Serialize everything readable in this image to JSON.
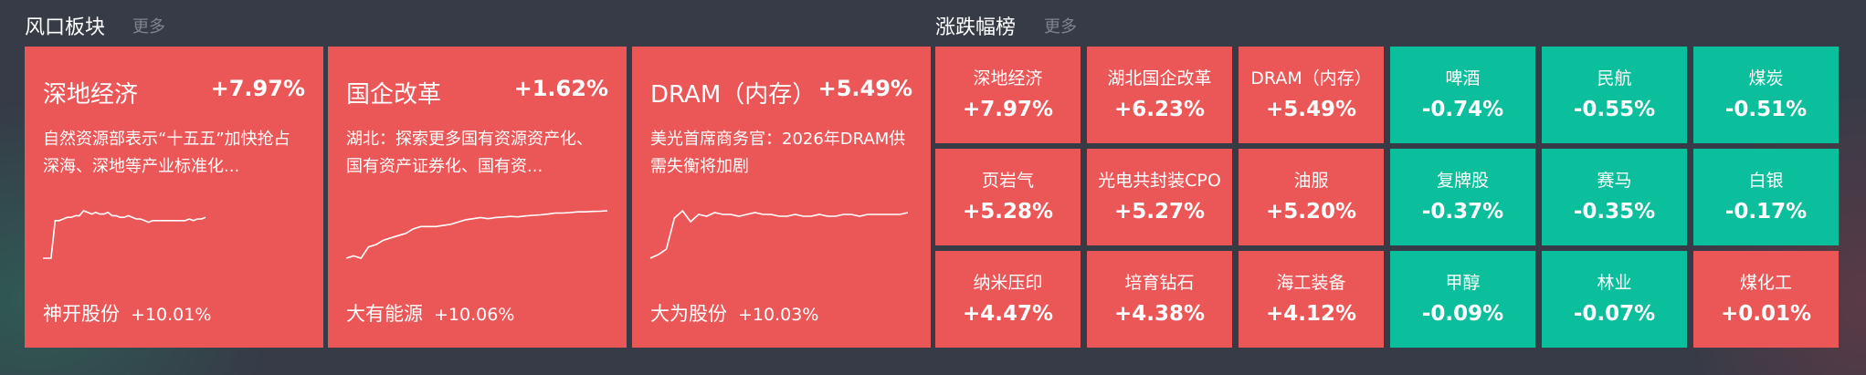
{
  "colors": {
    "up": "#eb5657",
    "down": "#0bbf9c",
    "background": "#363b47"
  },
  "hot_sectors": {
    "title": "风口板块",
    "more": "更多",
    "cards": [
      {
        "name": "深地经济",
        "pct": "+7.97%",
        "desc": "自然资源部表示“十五五”加快抢占深海、深地等产业标准化...",
        "stock": "神开股份",
        "stock_pct": "+10.01%",
        "sparkline": [
          0,
          0,
          0,
          2.3,
          2.3,
          2.4,
          2.5,
          2.5,
          2.6,
          2.6,
          2.9,
          2.8,
          2.7,
          2.8,
          2.7,
          2.7,
          2.8,
          2.6,
          2.6,
          2.5,
          2.5,
          2.6,
          2.5,
          2.4,
          2.4,
          2.3,
          2.2,
          2.3,
          2.3,
          2.3,
          2.3,
          2.3,
          2.3,
          2.3,
          2.3,
          2.3,
          2.4,
          2.3,
          2.4,
          2.4,
          2.5
        ]
      },
      {
        "name": "国企改革",
        "pct": "+1.62%",
        "desc": "湖北：探索更多国有资源资产化、国有资产证券化、国有资...",
        "stock": "大有能源",
        "stock_pct": "+10.06%",
        "sparkline": [
          0,
          0.1,
          0,
          0.5,
          0.6,
          0.8,
          0.9,
          1.0,
          1.1,
          1.3,
          1.4,
          1.4,
          1.4,
          1.45,
          1.5,
          1.6,
          1.7,
          1.75,
          1.8,
          1.75,
          1.8,
          1.82,
          1.85,
          1.83,
          1.87,
          1.9,
          1.92,
          1.95,
          2.0,
          2.0,
          2.02,
          2.05,
          2.05,
          2.07,
          2.08,
          2.1
        ]
      },
      {
        "name": "DRAM（内存）",
        "pct": "+5.49%",
        "desc": "美光首席商务官：2026年DRAM供需失衡将加剧",
        "stock": "大为股份",
        "stock_pct": "+10.03%",
        "sparkline": [
          0,
          0.2,
          0.5,
          2.2,
          2.6,
          2.0,
          2.4,
          2.3,
          2.5,
          2.4,
          2.4,
          2.3,
          2.4,
          2.5,
          2.4,
          2.4,
          2.3,
          2.3,
          2.4,
          2.3,
          2.3,
          2.4,
          2.3,
          2.3,
          2.4,
          2.4,
          2.3,
          2.4,
          2.4,
          2.4,
          2.4,
          2.4,
          2.5
        ]
      }
    ]
  },
  "ranking": {
    "title": "涨跌幅榜",
    "more": "更多",
    "cells": [
      {
        "name": "深地经济",
        "pct": "+7.97%",
        "dir": "up"
      },
      {
        "name": "湖北国企改革",
        "pct": "+6.23%",
        "dir": "up"
      },
      {
        "name": "DRAM（内存）",
        "pct": "+5.49%",
        "dir": "up"
      },
      {
        "name": "啤酒",
        "pct": "-0.74%",
        "dir": "down"
      },
      {
        "name": "民航",
        "pct": "-0.55%",
        "dir": "down"
      },
      {
        "name": "煤炭",
        "pct": "-0.51%",
        "dir": "down"
      },
      {
        "name": "页岩气",
        "pct": "+5.28%",
        "dir": "up"
      },
      {
        "name": "光电共封装CPO",
        "pct": "+5.27%",
        "dir": "up"
      },
      {
        "name": "油服",
        "pct": "+5.20%",
        "dir": "up"
      },
      {
        "name": "复牌股",
        "pct": "-0.37%",
        "dir": "down"
      },
      {
        "name": "赛马",
        "pct": "-0.35%",
        "dir": "down"
      },
      {
        "name": "白银",
        "pct": "-0.17%",
        "dir": "down"
      },
      {
        "name": "纳米压印",
        "pct": "+4.47%",
        "dir": "up"
      },
      {
        "name": "培育钻石",
        "pct": "+4.38%",
        "dir": "up"
      },
      {
        "name": "海工装备",
        "pct": "+4.12%",
        "dir": "up"
      },
      {
        "name": "甲醇",
        "pct": "-0.09%",
        "dir": "down"
      },
      {
        "name": "林业",
        "pct": "-0.07%",
        "dir": "down"
      },
      {
        "name": "煤化工",
        "pct": "+0.01%",
        "dir": "up"
      }
    ]
  }
}
